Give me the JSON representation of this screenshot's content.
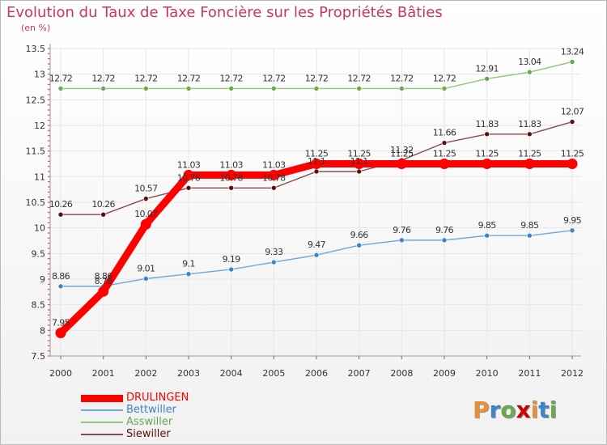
{
  "chart_data": {
    "type": "line",
    "title": "Evolution du Taux de Taxe Foncière sur les Propriétés Bâties",
    "ylabel": "(en %)",
    "ylim": [
      7.5,
      13.5
    ],
    "yticks": [
      "7.5",
      "8",
      "8.5",
      "9",
      "9.5",
      "10",
      "10.5",
      "11",
      "11.5",
      "12",
      "12.5",
      "13",
      "13.5"
    ],
    "categories": [
      "2000",
      "2001",
      "2002",
      "2003",
      "2004",
      "2005",
      "2006",
      "2007",
      "2008",
      "2009",
      "2010",
      "2011",
      "2012"
    ],
    "series": [
      {
        "name": "DRULINGEN",
        "color": "#ff0000",
        "marker": "#ff0000",
        "values": [
          7.95,
          8.76,
          10.07,
          11.03,
          11.03,
          11.03,
          11.25,
          11.25,
          11.25,
          11.25,
          11.25,
          11.25,
          11.25
        ],
        "labels": [
          "7.95",
          "8.76",
          "10.07",
          "11.03",
          "11.03",
          "11.03",
          "11.25",
          "11.25",
          "11.25",
          "11.25",
          "11.25",
          "11.25",
          "11.25"
        ]
      },
      {
        "name": "Bettwiller",
        "color": "#6fa8dc",
        "marker": "#3d85c6",
        "values": [
          8.86,
          8.86,
          9.01,
          9.1,
          9.19,
          9.33,
          9.47,
          9.66,
          9.76,
          9.76,
          9.85,
          9.85,
          9.95
        ],
        "labels": [
          "8.86",
          "8.86",
          "9.01",
          "9.1",
          "9.19",
          "9.33",
          "9.47",
          "9.66",
          "9.76",
          "9.76",
          "9.85",
          "9.85",
          "9.95"
        ]
      },
      {
        "name": "Asswiller",
        "color": "#93c47d",
        "marker": "#6aa84f",
        "values": [
          12.72,
          12.72,
          12.72,
          12.72,
          12.72,
          12.72,
          12.72,
          12.72,
          12.72,
          12.72,
          12.91,
          13.04,
          13.24
        ],
        "labels": [
          "12.72",
          "12.72",
          "12.72",
          "12.72",
          "12.72",
          "12.72",
          "12.72",
          "12.72",
          "12.72",
          "12.72",
          "12.91",
          "13.04",
          "13.24"
        ]
      },
      {
        "name": "Siewiller",
        "color": "#8b4a4a",
        "marker": "#5b0f0f",
        "values": [
          10.26,
          10.26,
          10.57,
          10.78,
          10.78,
          10.78,
          11.1,
          11.1,
          11.32,
          11.66,
          11.83,
          11.83,
          12.07
        ],
        "labels": [
          "10.26",
          "10.26",
          "10.57",
          "10.78",
          "10.78",
          "10.78",
          "11.1",
          "11.1",
          "11.32",
          "11.66",
          "11.83",
          "11.83",
          "12.07"
        ]
      }
    ]
  },
  "logo": {
    "letters": [
      "P",
      "r",
      "o",
      "x",
      "i",
      "t",
      "i"
    ],
    "colors": [
      "#e69138",
      "#3d85c6",
      "#6aa84f",
      "#cc0000",
      "#e69138",
      "#3d85c6",
      "#6aa84f"
    ]
  }
}
